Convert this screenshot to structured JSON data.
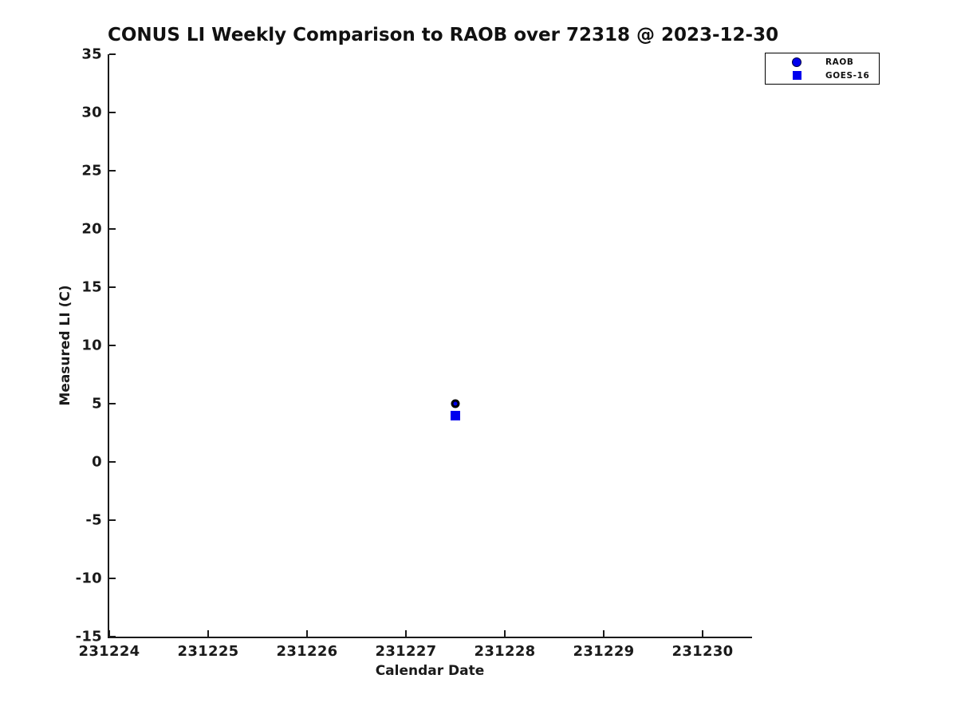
{
  "chart_data": {
    "type": "scatter",
    "title": "CONUS LI Weekly Comparison to RAOB over 72318 @ 2023-12-30",
    "xlabel": "Calendar Date",
    "ylabel": "Measured LI (C)",
    "xlim": [
      231224,
      231230.5
    ],
    "ylim": [
      -15,
      35
    ],
    "x_ticks": [
      231224,
      231225,
      231226,
      231227,
      231228,
      231229,
      231230
    ],
    "y_ticks": [
      -15,
      -10,
      -5,
      0,
      5,
      10,
      15,
      20,
      25,
      30,
      35
    ],
    "grid": false,
    "legend_position": "top-right-outside",
    "series": [
      {
        "name": "RAOB",
        "marker": "circle",
        "face_color": "#0000ee",
        "edge_color": "#000000",
        "points": [
          {
            "x": 231227.5,
            "y": 5
          }
        ]
      },
      {
        "name": "GOES-16",
        "marker": "square",
        "face_color": "#0000ee",
        "edge_color": "#0000ee",
        "points": [
          {
            "x": 231227.5,
            "y": 4
          }
        ]
      }
    ]
  },
  "colors": {
    "marker_blue": "#0000ee",
    "axis": "#1a1a1a",
    "background": "#ffffff"
  }
}
